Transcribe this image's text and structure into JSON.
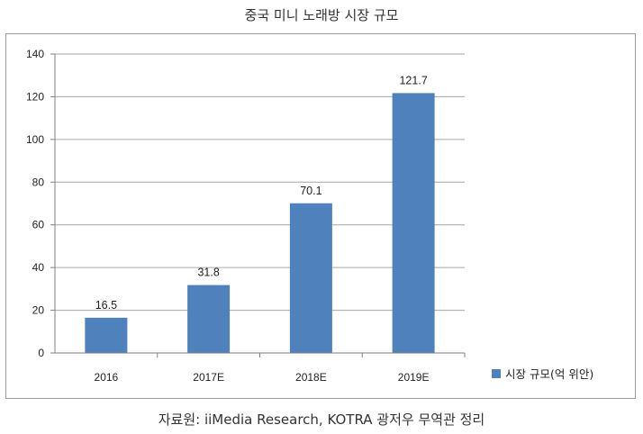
{
  "title": "중국 미니 노래방 시장 규모",
  "source": "자료원: iiMedia Research, KOTRA 광저우 무역관 정리",
  "colors": {
    "bar": "#4f81bd",
    "grid": "#a6a6a6",
    "axis": "#808080"
  },
  "chart_data": {
    "type": "bar",
    "categories": [
      "2016",
      "2017E",
      "2018E",
      "2019E"
    ],
    "series": [
      {
        "name": "시장 규모(억 위안)",
        "values": [
          16.5,
          31.8,
          70.1,
          121.7
        ]
      }
    ],
    "data_labels": [
      "16.5",
      "31.8",
      "70.1",
      "121.7"
    ],
    "ylim": [
      0,
      140
    ],
    "yticks": [
      0,
      20,
      40,
      60,
      80,
      100,
      120,
      140
    ],
    "grid": true,
    "legend_position": "right-bottom"
  }
}
